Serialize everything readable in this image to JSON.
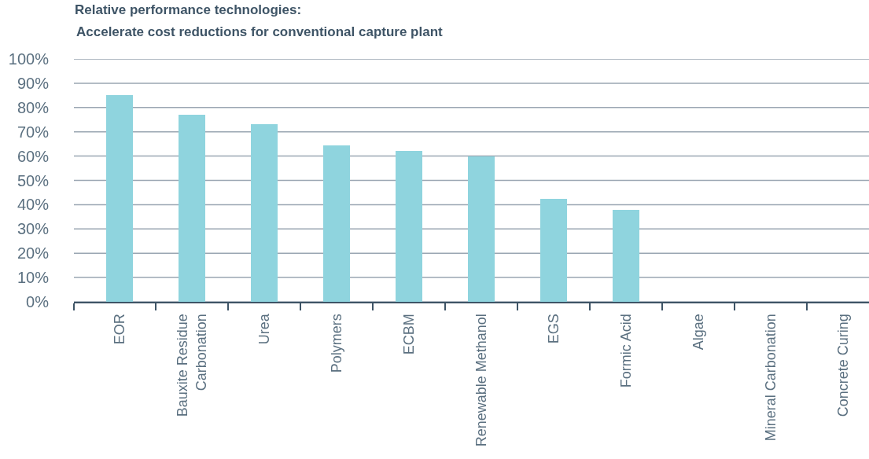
{
  "chart_data": {
    "type": "bar",
    "title": "Relative performance technologies:",
    "subtitle": "Accelerate cost reductions for conventional capture plant",
    "categories": [
      "EOR",
      "Bauxite Residue Carbonation",
      "Urea",
      "Polymers",
      "ECBM",
      "Renewable Methanol",
      "EGS",
      "Formic Acid",
      "Algae",
      "Mineral Carbonation",
      "Concrete Curing"
    ],
    "values": [
      85,
      77,
      73,
      64.5,
      62,
      60,
      42.5,
      38,
      0,
      0,
      0
    ],
    "color": "#8fd4de",
    "ylim": [
      0,
      100
    ],
    "yticks": [
      {
        "value": 0,
        "label": "0%"
      },
      {
        "value": 10,
        "label": "10%"
      },
      {
        "value": 20,
        "label": "20%"
      },
      {
        "value": 30,
        "label": "30%"
      },
      {
        "value": 40,
        "label": "40%"
      },
      {
        "value": 50,
        "label": "50%"
      },
      {
        "value": 60,
        "label": "60%"
      },
      {
        "value": 70,
        "label": "70%"
      },
      {
        "value": 80,
        "label": "80%"
      },
      {
        "value": 90,
        "label": "90%"
      },
      {
        "value": 100,
        "label": "100%"
      }
    ],
    "grid": "y"
  }
}
